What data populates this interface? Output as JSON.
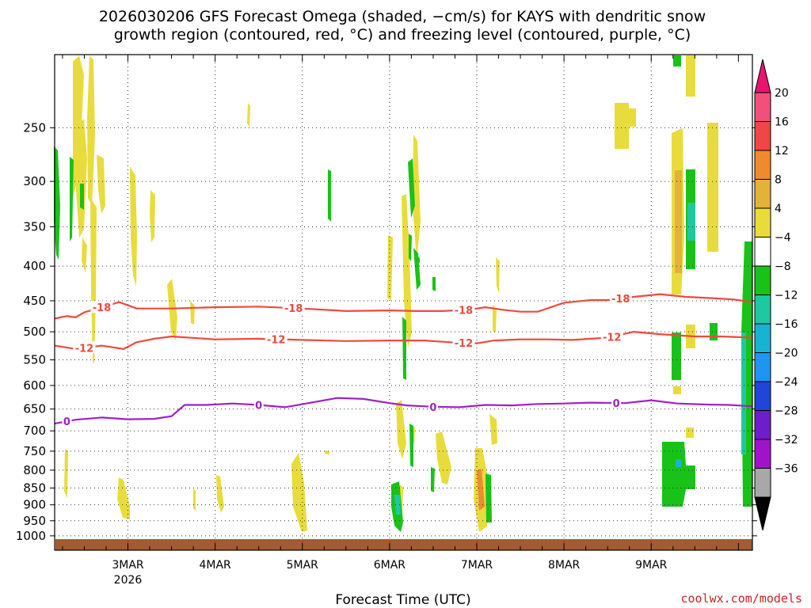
{
  "chart_data": {
    "type": "heatmap",
    "title_line1": "2026030206 GFS Forecast Omega (shaded, −cm/s) for KAYS with dendritic snow",
    "title_line2": "growth region (contoured, red, °C) and freezing level (contoured, purple, °C)",
    "xlabel": "Forecast Time (UTC)",
    "credit": "coolwx.com/models",
    "y_scale": "log",
    "y_reversed": true,
    "ylim": [
      1050,
      195
    ],
    "yticks": [
      250,
      300,
      350,
      400,
      450,
      500,
      550,
      600,
      650,
      700,
      750,
      800,
      850,
      900,
      950,
      1000
    ],
    "xlim": [
      0.66,
      8.66
    ],
    "xticks": [
      {
        "x": 1.5,
        "label": "3MAR"
      },
      {
        "x": 2.5,
        "label": "4MAR"
      },
      {
        "x": 3.5,
        "label": "5MAR"
      },
      {
        "x": 4.5,
        "label": "6MAR"
      },
      {
        "x": 5.5,
        "label": "7MAR"
      },
      {
        "x": 6.5,
        "label": "8MAR"
      },
      {
        "x": 7.5,
        "label": "9MAR"
      }
    ],
    "xtick_sublabel": {
      "x": 1.5,
      "label": "2026"
    },
    "grid": "dotted",
    "colorbar": {
      "levels": [
        "20",
        "16",
        "12",
        "8",
        "4",
        "−4",
        "−8",
        "−12",
        "−16",
        "−20",
        "−24",
        "−28",
        "−32",
        "−36"
      ],
      "colors": [
        "#f0507a",
        "#f04646",
        "#ef8a2e",
        "#e2b23a",
        "#e8dc3c",
        "#ffffff",
        "#19c219",
        "#1ec8a0",
        "#16b4d2",
        "#1e96f0",
        "#2046d6",
        "#6e1ec8",
        "#a014c8",
        "#a8a8a8",
        "#000000"
      ],
      "top_arrow_color": "#e8146e",
      "bottom_arrow_color": "#000000"
    },
    "contours": [
      {
        "label": "-18",
        "color": "#f0483c",
        "label_x": [
          1.2,
          3.4,
          5.35,
          7.15
        ],
        "points": [
          [
            0.66,
            478
          ],
          [
            0.8,
            474
          ],
          [
            0.9,
            476
          ],
          [
            1.0,
            468
          ],
          [
            1.2,
            460
          ],
          [
            1.4,
            452
          ],
          [
            1.6,
            462
          ],
          [
            2.0,
            462
          ],
          [
            2.5,
            460
          ],
          [
            3.0,
            459
          ],
          [
            3.5,
            462
          ],
          [
            4.0,
            466
          ],
          [
            4.5,
            465
          ],
          [
            4.8,
            466
          ],
          [
            5.1,
            466
          ],
          [
            5.4,
            464
          ],
          [
            5.6,
            460
          ],
          [
            5.8,
            464
          ],
          [
            6.0,
            467
          ],
          [
            6.2,
            467
          ],
          [
            6.5,
            453
          ],
          [
            6.8,
            449
          ],
          [
            7.0,
            449
          ],
          [
            7.3,
            444
          ],
          [
            7.6,
            440
          ],
          [
            7.9,
            444
          ],
          [
            8.2,
            446
          ],
          [
            8.45,
            448
          ],
          [
            8.66,
            452
          ]
        ]
      },
      {
        "label": "-12",
        "color": "#f0483c",
        "label_x": [
          1.0,
          3.2,
          5.35,
          7.05
        ],
        "points": [
          [
            0.66,
            524
          ],
          [
            0.9,
            530
          ],
          [
            1.2,
            524
          ],
          [
            1.45,
            530
          ],
          [
            1.6,
            518
          ],
          [
            1.8,
            512
          ],
          [
            2.0,
            508
          ],
          [
            2.5,
            513
          ],
          [
            3.0,
            512
          ],
          [
            3.5,
            514
          ],
          [
            4.0,
            516
          ],
          [
            4.5,
            515
          ],
          [
            4.9,
            515
          ],
          [
            5.2,
            518
          ],
          [
            5.5,
            520
          ],
          [
            5.7,
            515
          ],
          [
            6.0,
            513
          ],
          [
            6.3,
            513
          ],
          [
            6.6,
            514
          ],
          [
            7.0,
            510
          ],
          [
            7.3,
            500
          ],
          [
            7.6,
            504
          ],
          [
            8.0,
            508
          ],
          [
            8.3,
            508
          ],
          [
            8.66,
            510
          ]
        ]
      },
      {
        "label": "0",
        "color": "#a020c8",
        "label_x": [
          0.8,
          3.0,
          5.0,
          7.1
        ],
        "points": [
          [
            0.66,
            683
          ],
          [
            0.9,
            674
          ],
          [
            1.2,
            669
          ],
          [
            1.5,
            673
          ],
          [
            1.8,
            672
          ],
          [
            2.0,
            666
          ],
          [
            2.15,
            641
          ],
          [
            2.4,
            641
          ],
          [
            2.7,
            638
          ],
          [
            3.0,
            641
          ],
          [
            3.3,
            646
          ],
          [
            3.6,
            636
          ],
          [
            3.9,
            626
          ],
          [
            4.2,
            628
          ],
          [
            4.5,
            637
          ],
          [
            4.7,
            642
          ],
          [
            5.0,
            645
          ],
          [
            5.3,
            646
          ],
          [
            5.6,
            641
          ],
          [
            5.9,
            642
          ],
          [
            6.2,
            639
          ],
          [
            6.5,
            638
          ],
          [
            6.8,
            636
          ],
          [
            7.2,
            637
          ],
          [
            7.5,
            631
          ],
          [
            7.8,
            638
          ],
          [
            8.1,
            640
          ],
          [
            8.4,
            641
          ],
          [
            8.66,
            644
          ]
        ]
      }
    ]
  }
}
